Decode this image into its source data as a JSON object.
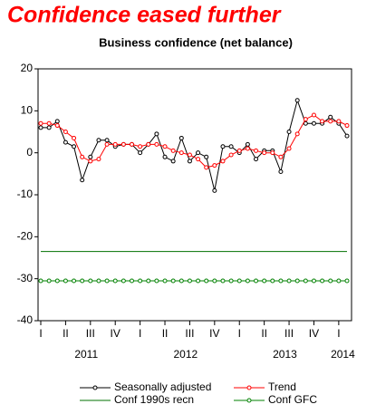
{
  "chart_data": {
    "type": "line",
    "title": "Confidence eased further",
    "subtitle": "Business confidence (net balance)",
    "categories": [
      "I",
      null,
      null,
      "II",
      null,
      null,
      "III",
      null,
      null,
      "IV",
      null,
      null,
      "I",
      null,
      null,
      "II",
      null,
      null,
      "III",
      null,
      null,
      "IV",
      null,
      null,
      "I",
      null,
      null,
      "II",
      null,
      null,
      "III",
      null,
      null,
      "IV",
      null,
      null,
      "I",
      null
    ],
    "years": [
      "2011",
      "2012",
      "2013",
      "2014"
    ],
    "ylim": [
      -40,
      20
    ],
    "yticks": [
      20,
      10,
      0,
      -10,
      -20,
      -30,
      -40
    ],
    "series": [
      {
        "name": "Seasonally adjusted",
        "color": "#000000",
        "marker": true,
        "values": [
          6,
          6,
          7.5,
          2.5,
          1.5,
          -6.5,
          -1,
          3,
          3,
          1.5,
          2,
          2,
          0,
          2,
          4.5,
          -1,
          -2,
          3.5,
          -2,
          0,
          -1,
          -9,
          1.5,
          1.5,
          0,
          2,
          -1.5,
          0.5,
          0.5,
          -4.5,
          5,
          12.5,
          7,
          7,
          7,
          8.5,
          7,
          4
        ]
      },
      {
        "name": "Trend",
        "color": "#ff0000",
        "marker": true,
        "values": [
          7,
          7,
          6.5,
          5,
          3.5,
          -1,
          -2,
          -1.5,
          2,
          2,
          2,
          2,
          1.5,
          2,
          2,
          1.5,
          0.5,
          0,
          -0.5,
          -1.5,
          -3.5,
          -3,
          -2,
          -0.5,
          0.5,
          1,
          0.5,
          0,
          0,
          -1,
          1,
          4.5,
          8,
          9,
          7.5,
          7.5,
          7.5,
          6.5
        ]
      },
      {
        "name": "Conf 1990s recn",
        "color": "#007000",
        "marker": false,
        "values": [
          -23.5,
          -23.5,
          -23.5,
          -23.5,
          -23.5,
          -23.5,
          -23.5,
          -23.5,
          -23.5,
          -23.5,
          -23.5,
          -23.5,
          -23.5,
          -23.5,
          -23.5,
          -23.5,
          -23.5,
          -23.5,
          -23.5,
          -23.5,
          -23.5,
          -23.5,
          -23.5,
          -23.5,
          -23.5,
          -23.5,
          -23.5,
          -23.5,
          -23.5,
          -23.5,
          -23.5,
          -23.5,
          -23.5,
          -23.5,
          -23.5,
          -23.5,
          -23.5,
          -23.5
        ]
      },
      {
        "name": "Conf GFC",
        "color": "#008000",
        "marker": true,
        "values": [
          -30.5,
          -30.5,
          -30.5,
          -30.5,
          -30.5,
          -30.5,
          -30.5,
          -30.5,
          -30.5,
          -30.5,
          -30.5,
          -30.5,
          -30.5,
          -30.5,
          -30.5,
          -30.5,
          -30.5,
          -30.5,
          -30.5,
          -30.5,
          -30.5,
          -30.5,
          -30.5,
          -30.5,
          -30.5,
          -30.5,
          -30.5,
          -30.5,
          -30.5,
          -30.5,
          -30.5,
          -30.5,
          -30.5,
          -30.5,
          -30.5,
          -30.5,
          -30.5,
          -30.5
        ]
      }
    ]
  }
}
